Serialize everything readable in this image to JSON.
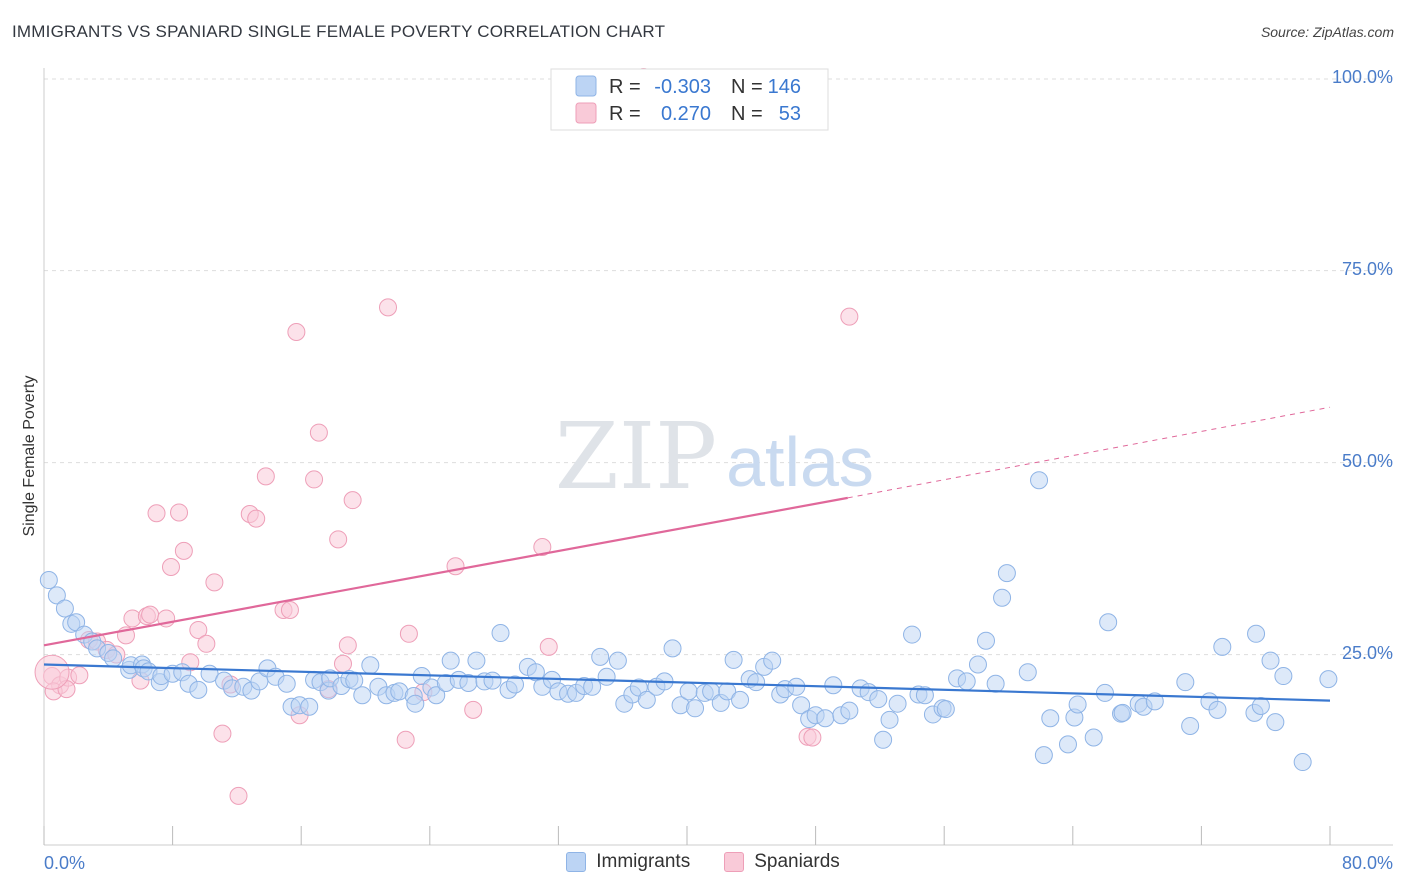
{
  "header": {
    "title": "IMMIGRANTS VS SPANIARD SINGLE FEMALE POVERTY CORRELATION CHART",
    "source": "Source: ZipAtlas.com"
  },
  "watermark": {
    "zip": "ZIP",
    "atlas": "atlas"
  },
  "colors": {
    "blue_fill": "#bcd4f4",
    "blue_stroke": "#8fb4e6",
    "blue_line": "#3a78d0",
    "pink_fill": "#f9cad8",
    "pink_stroke": "#ee9fb8",
    "pink_line": "#e0689a",
    "grid": "#dddddd",
    "tick_text": "#4a7cc9"
  },
  "legend": {
    "rows": [
      {
        "r_label": "R =",
        "r_value": "-0.303",
        "n_label": "N =",
        "n_value": "146"
      },
      {
        "r_label": "R =",
        "r_value": "0.270",
        "n_label": "N =",
        "n_value": "53"
      }
    ]
  },
  "bottom_legend": {
    "immigrants": "Immigrants",
    "spaniards": "Spaniards"
  },
  "chart_data": {
    "type": "scatter",
    "title": "IMMIGRANTS VS SPANIARD SINGLE FEMALE POVERTY CORRELATION CHART",
    "xlabel": "",
    "ylabel": "Single Female Poverty",
    "xlim": [
      0,
      80
    ],
    "ylim": [
      0,
      100
    ],
    "x_tick_labels": [
      "0.0%",
      "80.0%"
    ],
    "y_ticks": [
      25,
      50,
      75,
      100
    ],
    "y_tick_labels": [
      "25.0%",
      "50.0%",
      "75.0%",
      "100.0%"
    ],
    "grid": true,
    "series": [
      {
        "name": "Immigrants",
        "R": -0.303,
        "N": 146,
        "trend": {
          "x0": 0,
          "y0": 23.5,
          "x1": 80,
          "y1": 18.8
        },
        "points": [
          [
            0.3,
            34.5
          ],
          [
            0.8,
            32.5
          ],
          [
            1.3,
            30.8
          ],
          [
            1.7,
            28.8
          ],
          [
            2.0,
            29.0
          ],
          [
            2.5,
            27.4
          ],
          [
            3.0,
            26.5
          ],
          [
            3.3,
            25.6
          ],
          [
            4.0,
            25.0
          ],
          [
            4.3,
            24.3
          ],
          [
            5.3,
            22.8
          ],
          [
            5.4,
            23.4
          ],
          [
            6.1,
            23.5
          ],
          [
            6.2,
            23.0
          ],
          [
            6.5,
            22.6
          ],
          [
            7.2,
            21.2
          ],
          [
            7.3,
            22.0
          ],
          [
            8.0,
            22.3
          ],
          [
            8.6,
            22.5
          ],
          [
            9.0,
            21.0
          ],
          [
            9.6,
            20.2
          ],
          [
            10.3,
            22.3
          ],
          [
            11.2,
            21.4
          ],
          [
            11.7,
            20.4
          ],
          [
            12.4,
            20.6
          ],
          [
            12.9,
            20.1
          ],
          [
            13.4,
            21.3
          ],
          [
            13.9,
            23.0
          ],
          [
            14.4,
            21.9
          ],
          [
            15.1,
            21.0
          ],
          [
            15.4,
            18.0
          ],
          [
            15.9,
            18.2
          ],
          [
            16.5,
            18.0
          ],
          [
            16.8,
            21.5
          ],
          [
            17.2,
            21.2
          ],
          [
            17.7,
            20.1
          ],
          [
            17.8,
            21.7
          ],
          [
            18.5,
            20.7
          ],
          [
            19.0,
            21.6
          ],
          [
            19.3,
            21.4
          ],
          [
            19.8,
            19.5
          ],
          [
            20.3,
            23.4
          ],
          [
            20.8,
            20.6
          ],
          [
            21.3,
            19.5
          ],
          [
            21.8,
            19.8
          ],
          [
            22.1,
            20.0
          ],
          [
            23.0,
            19.4
          ],
          [
            23.1,
            18.4
          ],
          [
            23.5,
            22.0
          ],
          [
            24.1,
            20.5
          ],
          [
            24.4,
            19.5
          ],
          [
            25.0,
            21.1
          ],
          [
            25.3,
            24.0
          ],
          [
            25.8,
            21.5
          ],
          [
            26.4,
            21.1
          ],
          [
            26.9,
            24.0
          ],
          [
            27.4,
            21.3
          ],
          [
            27.9,
            21.4
          ],
          [
            28.4,
            27.6
          ],
          [
            28.9,
            20.2
          ],
          [
            29.3,
            20.9
          ],
          [
            30.1,
            23.2
          ],
          [
            30.6,
            22.5
          ],
          [
            31.0,
            20.6
          ],
          [
            31.6,
            21.5
          ],
          [
            32.0,
            20.0
          ],
          [
            32.6,
            19.7
          ],
          [
            33.1,
            19.8
          ],
          [
            33.6,
            20.7
          ],
          [
            34.1,
            20.6
          ],
          [
            34.6,
            24.5
          ],
          [
            35.0,
            21.9
          ],
          [
            35.7,
            24.0
          ],
          [
            36.1,
            18.4
          ],
          [
            36.6,
            19.6
          ],
          [
            37.0,
            20.5
          ],
          [
            37.5,
            18.9
          ],
          [
            38.1,
            20.6
          ],
          [
            38.6,
            21.3
          ],
          [
            39.1,
            25.6
          ],
          [
            39.6,
            18.2
          ],
          [
            40.1,
            20.0
          ],
          [
            40.5,
            17.8
          ],
          [
            41.1,
            19.8
          ],
          [
            41.5,
            20.0
          ],
          [
            42.1,
            18.5
          ],
          [
            42.5,
            20.0
          ],
          [
            42.9,
            24.1
          ],
          [
            43.3,
            18.9
          ],
          [
            43.9,
            21.6
          ],
          [
            44.3,
            21.2
          ],
          [
            44.8,
            23.2
          ],
          [
            45.3,
            24.0
          ],
          [
            45.8,
            19.6
          ],
          [
            46.1,
            20.3
          ],
          [
            46.8,
            20.6
          ],
          [
            47.1,
            18.2
          ],
          [
            47.6,
            16.4
          ],
          [
            48.0,
            16.9
          ],
          [
            48.6,
            16.5
          ],
          [
            49.1,
            20.8
          ],
          [
            49.6,
            16.9
          ],
          [
            50.1,
            17.5
          ],
          [
            50.8,
            20.4
          ],
          [
            51.3,
            19.9
          ],
          [
            51.9,
            19.0
          ],
          [
            52.2,
            13.7
          ],
          [
            52.6,
            16.3
          ],
          [
            53.1,
            18.4
          ],
          [
            54.0,
            27.4
          ],
          [
            54.4,
            19.6
          ],
          [
            54.8,
            19.5
          ],
          [
            55.3,
            17.0
          ],
          [
            55.9,
            17.8
          ],
          [
            56.1,
            17.7
          ],
          [
            56.8,
            21.7
          ],
          [
            57.4,
            21.3
          ],
          [
            58.1,
            23.5
          ],
          [
            58.6,
            26.6
          ],
          [
            59.2,
            21.0
          ],
          [
            59.6,
            32.2
          ],
          [
            59.9,
            35.4
          ],
          [
            61.2,
            22.5
          ],
          [
            61.9,
            47.5
          ],
          [
            62.2,
            11.7
          ],
          [
            62.6,
            16.5
          ],
          [
            63.7,
            13.1
          ],
          [
            64.1,
            16.6
          ],
          [
            64.3,
            18.3
          ],
          [
            65.3,
            14.0
          ],
          [
            66.0,
            19.8
          ],
          [
            66.2,
            29.0
          ],
          [
            67.0,
            17.1
          ],
          [
            67.1,
            17.2
          ],
          [
            68.1,
            18.4
          ],
          [
            68.4,
            18.0
          ],
          [
            69.1,
            18.7
          ],
          [
            71.0,
            21.2
          ],
          [
            71.3,
            15.5
          ],
          [
            72.5,
            18.7
          ],
          [
            73.0,
            17.6
          ],
          [
            73.3,
            25.8
          ],
          [
            75.3,
            17.2
          ],
          [
            75.4,
            27.5
          ],
          [
            75.7,
            18.1
          ],
          [
            76.3,
            24.0
          ],
          [
            76.6,
            16.0
          ],
          [
            77.1,
            22.0
          ],
          [
            78.3,
            10.8
          ],
          [
            79.9,
            21.6
          ]
        ]
      },
      {
        "name": "Spaniards",
        "R": 0.27,
        "N": 53,
        "trend": {
          "x0": 0,
          "y0": 26.0,
          "x1": 50,
          "y1": 45.2,
          "dashed_to_x": 80,
          "dashed_to_y": 57.0
        },
        "points": [
          [
            0.5,
            22.0
          ],
          [
            1.0,
            20.8
          ],
          [
            1.5,
            21.8
          ],
          [
            2.2,
            22.1
          ],
          [
            2.8,
            26.7
          ],
          [
            3.3,
            26.5
          ],
          [
            3.9,
            25.4
          ],
          [
            4.5,
            24.8
          ],
          [
            5.1,
            27.3
          ],
          [
            5.5,
            29.5
          ],
          [
            6.0,
            21.4
          ],
          [
            6.4,
            29.8
          ],
          [
            6.6,
            30.0
          ],
          [
            7.0,
            43.2
          ],
          [
            7.6,
            29.5
          ],
          [
            7.9,
            36.2
          ],
          [
            8.4,
            43.3
          ],
          [
            8.7,
            38.3
          ],
          [
            9.1,
            23.8
          ],
          [
            9.6,
            28.0
          ],
          [
            10.1,
            26.2
          ],
          [
            10.6,
            34.2
          ],
          [
            11.1,
            14.5
          ],
          [
            11.6,
            20.9
          ],
          [
            12.1,
            6.4
          ],
          [
            12.8,
            43.1
          ],
          [
            13.2,
            42.5
          ],
          [
            13.8,
            48.0
          ],
          [
            14.9,
            30.6
          ],
          [
            15.3,
            30.6
          ],
          [
            15.7,
            66.8
          ],
          [
            15.9,
            16.9
          ],
          [
            16.8,
            47.6
          ],
          [
            17.1,
            53.7
          ],
          [
            17.7,
            20.3
          ],
          [
            18.3,
            39.8
          ],
          [
            18.6,
            23.6
          ],
          [
            18.9,
            26.0
          ],
          [
            19.2,
            44.9
          ],
          [
            21.4,
            70.0
          ],
          [
            22.5,
            13.7
          ],
          [
            22.7,
            27.5
          ],
          [
            23.6,
            19.9
          ],
          [
            25.6,
            36.3
          ],
          [
            26.7,
            17.6
          ],
          [
            31.0,
            38.8
          ],
          [
            31.4,
            25.8
          ],
          [
            37.3,
            100.0
          ],
          [
            47.5,
            14.1
          ],
          [
            47.8,
            14.0
          ],
          [
            50.1,
            68.8
          ],
          [
            0.6,
            20.0
          ],
          [
            1.4,
            20.3
          ]
        ]
      }
    ]
  }
}
